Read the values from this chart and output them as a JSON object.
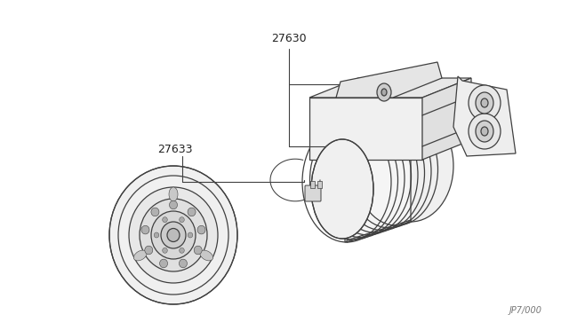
{
  "background_color": "#ffffff",
  "line_color": "#404040",
  "label_color": "#222222",
  "part_27630": "27630",
  "part_27633": "27633",
  "watermark": "JP7/000",
  "figsize": [
    6.4,
    3.72
  ],
  "dpi": 100,
  "lw_main": 0.9,
  "lw_thin": 0.6
}
